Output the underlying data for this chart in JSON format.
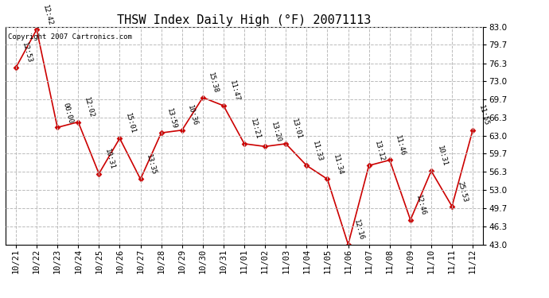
{
  "title": "THSW Index Daily High (°F) 20071113",
  "copyright": "Copyright 2007 Cartronics.com",
  "x_labels": [
    "10/21",
    "10/22",
    "10/23",
    "10/24",
    "10/25",
    "10/26",
    "10/27",
    "10/28",
    "10/29",
    "10/30",
    "10/31",
    "11/01",
    "11/02",
    "11/03",
    "11/04",
    "11/05",
    "11/06",
    "11/07",
    "11/08",
    "11/09",
    "11/10",
    "11/11",
    "11/12"
  ],
  "y_values": [
    75.5,
    82.5,
    64.5,
    65.5,
    56.0,
    62.5,
    55.0,
    63.5,
    64.0,
    70.0,
    68.5,
    61.5,
    61.0,
    61.5,
    57.5,
    55.0,
    43.0,
    57.5,
    58.5,
    47.5,
    56.5,
    50.0,
    64.0
  ],
  "point_labels": [
    "12:53",
    "12:42",
    "00:00",
    "12:02",
    "10:31",
    "15:01",
    "13:35",
    "13:59",
    "10:36",
    "15:38",
    "11:47",
    "12:21",
    "13:20",
    "13:01",
    "11:33",
    "11:34",
    "12:16",
    "13:12",
    "11:46",
    "12:46",
    "10:31",
    "25:53",
    "11:55"
  ],
  "line_color": "#cc0000",
  "marker_color": "#cc0000",
  "background_color": "#ffffff",
  "grid_color": "#bbbbbb",
  "y_ticks": [
    43.0,
    46.3,
    49.7,
    53.0,
    56.3,
    59.7,
    63.0,
    66.3,
    69.7,
    73.0,
    76.3,
    79.7,
    83.0
  ],
  "ylim": [
    43.0,
    83.0
  ],
  "title_fontsize": 11,
  "label_fontsize": 6.5,
  "tick_fontsize": 7.5,
  "copyright_fontsize": 6.5
}
